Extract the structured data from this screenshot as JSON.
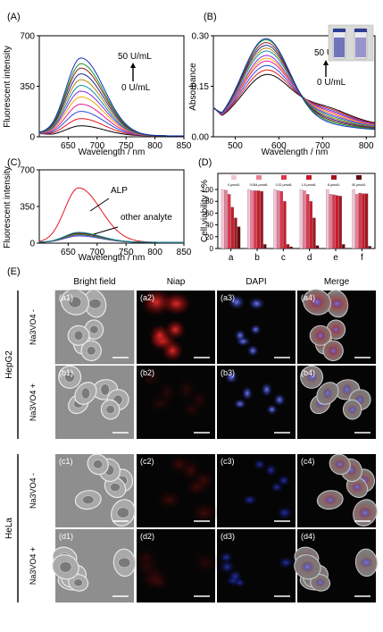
{
  "panels": {
    "A": "(A)",
    "B": "(B)",
    "C": "(C)",
    "D": "(D)",
    "E": "(E)"
  },
  "chart_data": [
    {
      "id": "A",
      "type": "line",
      "xlabel": "Wavelength / nm",
      "ylabel": "Fluorescent intensity",
      "xlim": [
        600,
        850
      ],
      "ylim": [
        0,
        700
      ],
      "xticks": [
        "650",
        "700",
        "750",
        "800",
        "850"
      ],
      "yticks": [
        "0",
        "350",
        "700"
      ],
      "minor_ytick": "175",
      "annotations": {
        "top": "50 U/mL",
        "bottom": "0 U/mL"
      },
      "peak_wavelength": 672,
      "peaks": [
        70,
        120,
        170,
        220,
        270,
        310,
        350,
        390,
        430,
        470,
        500,
        540
      ],
      "colors": [
        "#000000",
        "#e6171f",
        "#2a4bd7",
        "#e31a9a",
        "#f2a900",
        "#8a2be2",
        "#0b8fa3",
        "#b8860b",
        "#1d2b8f",
        "#8b1e1e",
        "#119922",
        "#1630b8"
      ]
    },
    {
      "id": "B",
      "type": "line",
      "xlabel": "Wavelength / nm",
      "ylabel": "Absorbance",
      "xlim": [
        450,
        820
      ],
      "ylim": [
        0.0,
        0.3
      ],
      "xticks": [
        "500",
        "600",
        "700",
        "800"
      ],
      "yticks": [
        "0.00",
        "0.15",
        "0.30"
      ],
      "annotations": {
        "top": "50 U/mL",
        "bottom": "0 U/mL"
      },
      "peak_wavelength": 570,
      "isosbestic": {
        "x": 650,
        "y": 0.135
      },
      "peaks": [
        0.145,
        0.16,
        0.175,
        0.19,
        0.2,
        0.21,
        0.225,
        0.235,
        0.245,
        0.255,
        0.265,
        0.27
      ],
      "colors": [
        "#000000",
        "#e6171f",
        "#2a4bd7",
        "#e31a9a",
        "#f2a900",
        "#8a2be2",
        "#0b8fa3",
        "#b8860b",
        "#1d2b8f",
        "#8b1e1e",
        "#119922",
        "#1630b8"
      ]
    },
    {
      "id": "C",
      "type": "line",
      "xlabel": "Wavelength / nm",
      "ylabel": "Fluorescent intensity",
      "xlim": [
        600,
        850
      ],
      "ylim": [
        0,
        700
      ],
      "xticks": [
        "650",
        "700",
        "750",
        "800",
        "850"
      ],
      "yticks": [
        "0",
        "350",
        "700"
      ],
      "annotations": {
        "alp": "ALP",
        "other": "other analyte"
      },
      "peak_wavelength": 668,
      "alp_peak": 520,
      "other_peaks": [
        60,
        70,
        75,
        80,
        85,
        90,
        95
      ],
      "colors": [
        "#e6171f",
        "#6a5acd",
        "#2a4bd7",
        "#1d7a3a",
        "#b8860b",
        "#333333",
        "#8b1e1e",
        "#0b8fa3"
      ]
    },
    {
      "id": "D",
      "type": "bar",
      "ylabel": "Cell viability / %",
      "ylim": [
        0,
        100
      ],
      "yticks": [
        "0",
        "20",
        "40",
        "60",
        "80",
        "100"
      ],
      "categories": [
        "a",
        "b",
        "c",
        "d",
        "e",
        "f"
      ],
      "series": [
        {
          "name": "0 μmol/L",
          "color": "#f5c4d6",
          "values": [
            100,
            100,
            100,
            100,
            100,
            100
          ]
        },
        {
          "name": "0.064 μmol/L",
          "color": "#ea7f98",
          "values": [
            99,
            98,
            98,
            98,
            92,
            92
          ]
        },
        {
          "name": "0.32 μmol/L",
          "color": "#e0334c",
          "values": [
            92,
            98,
            97,
            92,
            91,
            94
          ]
        },
        {
          "name": "1.6 μmol/L",
          "color": "#c91a2a",
          "values": [
            70,
            98,
            80,
            80,
            90,
            93
          ]
        },
        {
          "name": "8 μmol/L",
          "color": "#a3141f",
          "values": [
            52,
            97,
            7,
            52,
            89,
            93
          ]
        },
        {
          "name": "40 μmol/L",
          "color": "#5e0c12",
          "values": [
            37,
            7,
            3,
            5,
            7,
            4
          ]
        }
      ]
    }
  ],
  "micrograph": {
    "columns": [
      "Bright field",
      "Niap",
      "DAPI",
      "Merge"
    ],
    "row_groups": [
      "HepG2",
      "HeLa"
    ],
    "row_conditions": [
      "Na3VO4 -",
      "Na3VO4 +",
      "Na3VO4 -",
      "Na3VO4 +"
    ],
    "tile_labels": [
      [
        "(a1)",
        "(a2)",
        "(a3)",
        "(a4)"
      ],
      [
        "(b1)",
        "(b2)",
        "(b3)",
        "(b4)"
      ],
      [
        "(c1)",
        "(c2)",
        "(c3)",
        "(c4)"
      ],
      [
        "(d1)",
        "(d2)",
        "(d3)",
        "(d4)"
      ]
    ]
  },
  "vial_colors": {
    "liquid_a": "#5a5fb0",
    "liquid_b": "#8a86c4",
    "cap": "#2d3d93"
  }
}
